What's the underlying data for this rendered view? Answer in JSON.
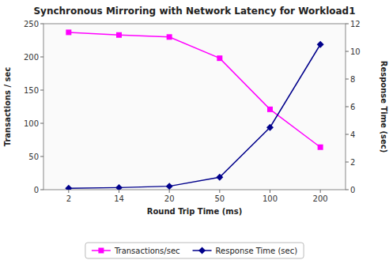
{
  "chart_data": {
    "type": "line",
    "title": "Synchronous Mirroring with Network Latency for Workload1",
    "xlabel": "Round Trip Time (ms)",
    "ylabel": "Transactions / sec",
    "y2label": "Response Time (sec)",
    "categories": [
      "2",
      "14",
      "20",
      "50",
      "100",
      "200"
    ],
    "series": [
      {
        "name": "Transactions/sec",
        "color": "#FF00FF",
        "marker": "square",
        "values": [
          237,
          233,
          230,
          198,
          121,
          64
        ]
      },
      {
        "name": "Response Time (sec)",
        "color": "#00008B",
        "marker": "diamond",
        "axis": "y2",
        "values": [
          0.1,
          0.15,
          0.25,
          0.9,
          4.5,
          10.5
        ]
      }
    ],
    "ylim": [
      0,
      250
    ],
    "yticks": [
      0,
      50,
      100,
      150,
      200,
      250
    ],
    "y2lim": [
      0,
      12
    ],
    "y2ticks": [
      0,
      2,
      4,
      6,
      8,
      10,
      12
    ],
    "legend": "bottom"
  }
}
